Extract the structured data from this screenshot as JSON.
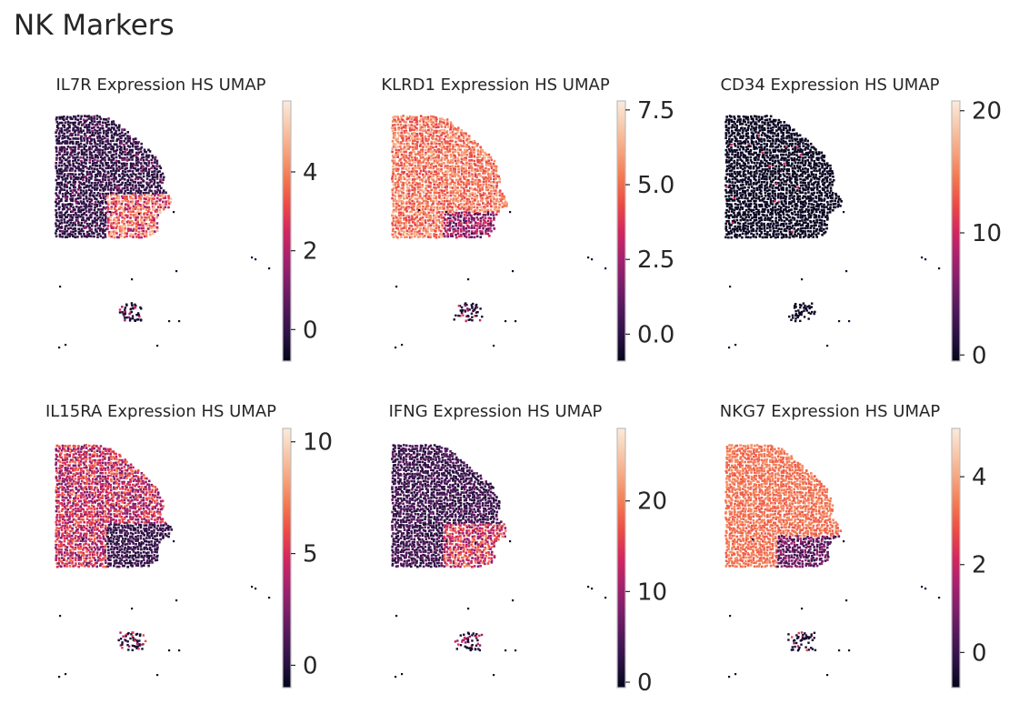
{
  "figure": {
    "title": "NK Markers"
  },
  "colors": {
    "cmap": [
      "#03051a",
      "#2b1144",
      "#52185c",
      "#7e1e6a",
      "#a8216e",
      "#d3275f",
      "#ec4a45",
      "#f3764f",
      "#f6a17b",
      "#f8c7a9",
      "#faebdd"
    ],
    "colorbar_outline": "#bdbdbd",
    "text": "#262626"
  },
  "chart_data": [
    {
      "type": "scatter",
      "title": "IL7R Expression HS UMAP",
      "colorbar": {
        "ticks": [
          "0",
          "2",
          "4"
        ],
        "tick_values": [
          0,
          2,
          4
        ],
        "range": [
          -0.8,
          5.8
        ]
      },
      "color_scheme": "low-high",
      "marker": "IL7R"
    },
    {
      "type": "scatter",
      "title": "KLRD1 Expression HS UMAP",
      "colorbar": {
        "ticks": [
          "0.0",
          "2.5",
          "5.0",
          "7.5"
        ],
        "tick_values": [
          0,
          2.5,
          5,
          7.5
        ],
        "range": [
          -0.9,
          7.8
        ]
      },
      "color_scheme": "high",
      "marker": "KLRD1"
    },
    {
      "type": "scatter",
      "title": "CD34 Expression HS UMAP",
      "colorbar": {
        "ticks": [
          "0",
          "10",
          "20"
        ],
        "tick_values": [
          0,
          10,
          20
        ],
        "range": [
          -0.5,
          20.8
        ]
      },
      "color_scheme": "zero",
      "marker": "CD34"
    },
    {
      "type": "scatter",
      "title": "IL15RA Expression HS UMAP",
      "colorbar": {
        "ticks": [
          "0",
          "5",
          "10"
        ],
        "tick_values": [
          0,
          5,
          10
        ],
        "range": [
          -1.0,
          10.6
        ]
      },
      "color_scheme": "mid",
      "marker": "IL15RA"
    },
    {
      "type": "scatter",
      "title": "IFNG Expression HS UMAP",
      "colorbar": {
        "ticks": [
          "0",
          "10",
          "20"
        ],
        "tick_values": [
          0,
          10,
          20
        ],
        "range": [
          -0.6,
          28
        ]
      },
      "color_scheme": "low-tail",
      "marker": "IFNG"
    },
    {
      "type": "scatter",
      "title": "NKG7 Expression HS UMAP",
      "colorbar": {
        "ticks": [
          "0",
          "2",
          "4"
        ],
        "tick_values": [
          0,
          2,
          4
        ],
        "range": [
          -0.8,
          5.1
        ]
      },
      "color_scheme": "high-tail-low",
      "marker": "NKG7"
    }
  ]
}
